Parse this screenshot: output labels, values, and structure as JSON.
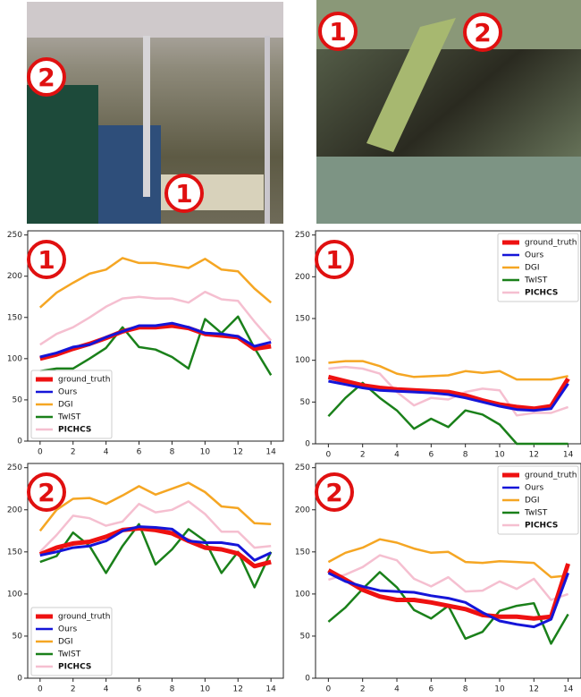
{
  "images": [
    {
      "markers": [
        "2",
        "1"
      ]
    },
    {
      "markers": [
        "1",
        "2"
      ]
    }
  ],
  "chart_data": [
    {
      "type": "line",
      "annotation": "1",
      "legend": "lower left",
      "x": [
        0,
        1,
        2,
        3,
        4,
        5,
        6,
        7,
        8,
        9,
        10,
        11,
        12,
        13,
        14
      ],
      "xlim": [
        -0.75,
        14.75
      ],
      "ylim": [
        0,
        255
      ],
      "xticks": [
        0,
        2,
        4,
        6,
        8,
        10,
        12,
        14
      ],
      "yticks": [
        0,
        50,
        100,
        150,
        200,
        250
      ],
      "series": [
        {
          "name": "ground_truth",
          "color": "#ee1111",
          "values": [
            100,
            105,
            112,
            118,
            125,
            133,
            138,
            138,
            140,
            137,
            130,
            128,
            126,
            112,
            115
          ]
        },
        {
          "name": "Ours",
          "color": "#1515d8",
          "values": [
            102,
            107,
            114,
            117,
            126,
            133,
            140,
            140,
            143,
            138,
            131,
            130,
            127,
            115,
            120
          ]
        },
        {
          "name": "DGI",
          "color": "#f5a623",
          "values": [
            162,
            180,
            192,
            203,
            208,
            222,
            216,
            216,
            213,
            210,
            221,
            208,
            206,
            185,
            168
          ]
        },
        {
          "name": "TwIST",
          "color": "#1a801a",
          "values": [
            85,
            88,
            88,
            100,
            113,
            138,
            114,
            111,
            102,
            88,
            148,
            131,
            151,
            113,
            80
          ]
        },
        {
          "name": "PICHCS",
          "color": "#f5bfd0",
          "values": [
            117,
            130,
            138,
            150,
            163,
            173,
            175,
            173,
            173,
            168,
            181,
            172,
            170,
            145,
            122
          ]
        }
      ]
    },
    {
      "type": "line",
      "annotation": "1",
      "legend": "upper right",
      "x": [
        0,
        1,
        2,
        3,
        4,
        5,
        6,
        7,
        8,
        9,
        10,
        11,
        12,
        13,
        14
      ],
      "xlim": [
        -0.75,
        14.75
      ],
      "ylim": [
        0,
        255
      ],
      "xticks": [
        0,
        2,
        4,
        6,
        8,
        10,
        12,
        14
      ],
      "yticks": [
        0,
        50,
        100,
        150,
        200,
        250
      ],
      "series": [
        {
          "name": "ground_truth",
          "color": "#ee1111",
          "values": [
            80,
            75,
            70,
            67,
            65,
            64,
            63,
            62,
            58,
            52,
            47,
            44,
            42,
            45,
            78
          ]
        },
        {
          "name": "Ours",
          "color": "#1515d8",
          "values": [
            75,
            71,
            67,
            64,
            63,
            62,
            61,
            59,
            55,
            50,
            45,
            41,
            40,
            42,
            72
          ]
        },
        {
          "name": "DGI",
          "color": "#f5a623",
          "values": [
            97,
            99,
            99,
            93,
            84,
            80,
            81,
            82,
            87,
            85,
            87,
            77,
            77,
            77,
            81
          ]
        },
        {
          "name": "TwIST",
          "color": "#1a801a",
          "values": [
            33,
            55,
            73,
            55,
            40,
            18,
            30,
            20,
            40,
            35,
            23,
            0,
            0,
            0,
            0
          ]
        },
        {
          "name": "PICHCS",
          "color": "#f5bfd0",
          "values": [
            90,
            92,
            90,
            84,
            62,
            46,
            55,
            53,
            62,
            66,
            64,
            34,
            37,
            37,
            44
          ]
        }
      ]
    },
    {
      "type": "line",
      "annotation": "2",
      "legend": "lower left",
      "x": [
        0,
        1,
        2,
        3,
        4,
        5,
        6,
        7,
        8,
        9,
        10,
        11,
        12,
        13,
        14
      ],
      "xlim": [
        -0.75,
        14.75
      ],
      "ylim": [
        0,
        255
      ],
      "xticks": [
        0,
        2,
        4,
        6,
        8,
        10,
        12,
        14
      ],
      "yticks": [
        0,
        50,
        100,
        150,
        200,
        250
      ],
      "series": [
        {
          "name": "ground_truth",
          "color": "#ee1111",
          "values": [
            147,
            155,
            160,
            162,
            168,
            176,
            178,
            176,
            172,
            163,
            155,
            153,
            148,
            133,
            138
          ]
        },
        {
          "name": "Ours",
          "color": "#1515d8",
          "values": [
            146,
            150,
            155,
            157,
            163,
            175,
            180,
            179,
            177,
            163,
            161,
            161,
            158,
            140,
            149
          ]
        },
        {
          "name": "DGI",
          "color": "#f5a623",
          "values": [
            175,
            200,
            213,
            214,
            207,
            217,
            228,
            218,
            225,
            232,
            221,
            204,
            202,
            184,
            183
          ]
        },
        {
          "name": "TwIST",
          "color": "#1a801a",
          "values": [
            138,
            145,
            173,
            157,
            125,
            157,
            183,
            135,
            153,
            177,
            163,
            125,
            150,
            108,
            150
          ]
        },
        {
          "name": "PICHCS",
          "color": "#f5bfd0",
          "values": [
            150,
            170,
            193,
            190,
            181,
            186,
            207,
            197,
            200,
            210,
            195,
            174,
            174,
            155,
            157
          ]
        }
      ]
    },
    {
      "type": "line",
      "annotation": "2",
      "legend": "upper right",
      "x": [
        0,
        1,
        2,
        3,
        4,
        5,
        6,
        7,
        8,
        9,
        10,
        11,
        12,
        13,
        14
      ],
      "xlim": [
        -0.75,
        14.75
      ],
      "ylim": [
        0,
        255
      ],
      "xticks": [
        0,
        2,
        4,
        6,
        8,
        10,
        12,
        14
      ],
      "yticks": [
        0,
        50,
        100,
        150,
        200,
        250
      ],
      "series": [
        {
          "name": "ground_truth",
          "color": "#ee1111",
          "values": [
            128,
            117,
            105,
            97,
            93,
            93,
            90,
            86,
            82,
            75,
            73,
            73,
            71,
            73,
            136
          ]
        },
        {
          "name": "Ours",
          "color": "#1515d8",
          "values": [
            125,
            115,
            109,
            104,
            103,
            102,
            98,
            95,
            90,
            78,
            68,
            64,
            61,
            70,
            125
          ]
        },
        {
          "name": "DGI",
          "color": "#f5a623",
          "values": [
            138,
            149,
            155,
            165,
            161,
            154,
            149,
            150,
            138,
            137,
            139,
            138,
            137,
            120,
            122
          ]
        },
        {
          "name": "TwIST",
          "color": "#1a801a",
          "values": [
            67,
            84,
            106,
            126,
            108,
            81,
            71,
            86,
            47,
            55,
            80,
            86,
            89,
            41,
            76
          ]
        },
        {
          "name": "PICHCS",
          "color": "#f5bfd0",
          "values": [
            117,
            123,
            132,
            146,
            140,
            118,
            109,
            120,
            103,
            104,
            115,
            106,
            118,
            93,
            100
          ]
        }
      ]
    }
  ]
}
